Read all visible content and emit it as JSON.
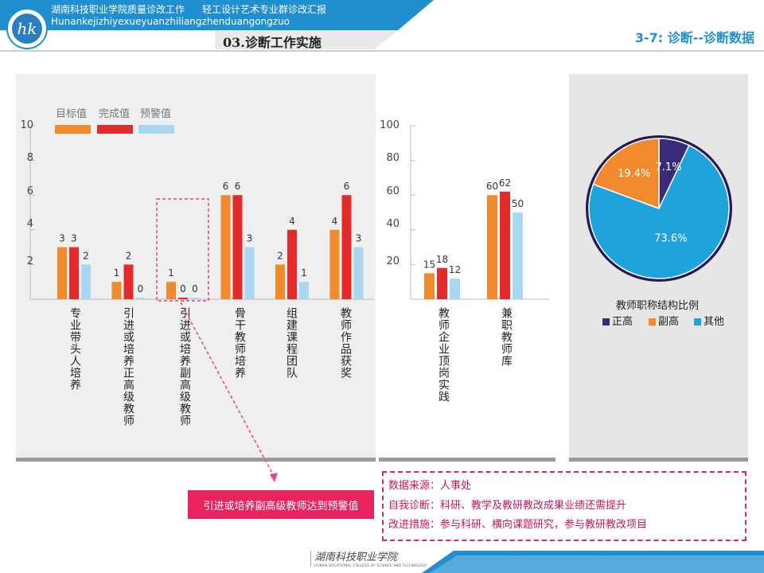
{
  "header": {
    "title_cn": "湖南科技职业学院质量诊改工作",
    "subtitle_cn": "轻工设计艺术专业群诊改汇报",
    "title_pinyin": "Hunankejizhiyexueyuanzhiliangzhenduangongzuo",
    "section": "03.诊断工作实施",
    "page_label": "3-7: 诊断--诊断数据",
    "colors": {
      "banner": "#1f8fd0",
      "accent": "#1f8fd0"
    }
  },
  "legend": {
    "target": "目标值",
    "done": "完成值",
    "warn": "预警值"
  },
  "colors": {
    "target": "#f08a2c",
    "done": "#e32b2b",
    "warn": "#a9d8f0",
    "purple": "#3a2a7a",
    "orange": "#f08a2c",
    "blue": "#1ea3dc"
  },
  "chart_data": [
    {
      "type": "bar",
      "ylim": [
        0,
        10
      ],
      "yticks": [
        "10",
        "8",
        "6",
        "4",
        "2"
      ],
      "categories": [
        "专业带头人培养",
        "引进或培养正高级教师",
        "引进或培养副高级教师",
        "骨干教师培养",
        "组建课程团队",
        "教师作品获奖"
      ],
      "series": [
        {
          "name": "目标值",
          "values": [
            3,
            1,
            1,
            6,
            2,
            4
          ]
        },
        {
          "name": "完成值",
          "values": [
            3,
            2,
            0,
            6,
            4,
            6
          ]
        },
        {
          "name": "预警值",
          "values": [
            2,
            0,
            0,
            3,
            1,
            3
          ]
        }
      ]
    },
    {
      "type": "bar",
      "ylim": [
        0,
        100
      ],
      "yticks": [
        "100",
        "80",
        "60",
        "40",
        "20"
      ],
      "categories": [
        "教师企业顶岗实践",
        "兼职教师库"
      ],
      "series": [
        {
          "name": "目标值",
          "values": [
            15,
            60
          ]
        },
        {
          "name": "完成值",
          "values": [
            18,
            62
          ]
        },
        {
          "name": "预警值",
          "values": [
            12,
            50
          ]
        }
      ]
    },
    {
      "type": "pie",
      "title": "教师职称结构比例",
      "categories": [
        "正高",
        "副高",
        "其他"
      ],
      "values": [
        7.1,
        19.4,
        73.6
      ],
      "labels": [
        "7.1%",
        "19.4%",
        "73.6%"
      ]
    }
  ],
  "callout": "引进或培养副高级教师达到预警值",
  "info": {
    "source": "数据来源：人事处",
    "diagnosis": "自我诊断：科研、教学及教研教改成果业绩还需提升",
    "measures": "改进措施：参与科研、横向课题研究，参与教研教改项目"
  },
  "footer": {
    "logo_text": "湖南科技职业学院",
    "logo_en": "HUNAN VOCATIONAL COLLEGE OF SCIENCE AND TECHNOLOGY"
  }
}
